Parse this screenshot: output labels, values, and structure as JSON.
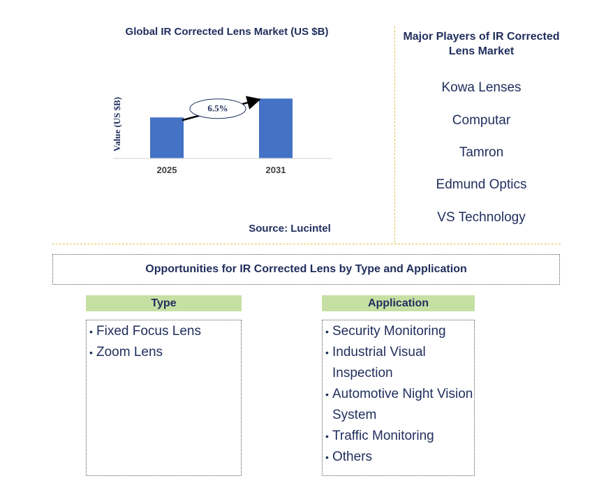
{
  "chart_data": {
    "type": "bar",
    "title": "Global IR Corrected Lens Market (US $B)",
    "ylabel": "Value (US $B)",
    "xlabel": "",
    "categories": [
      "2025",
      "2031"
    ],
    "values": [
      1.0,
      1.46
    ],
    "ylim": [
      0,
      1.6
    ],
    "grid": false,
    "annotation": "6.5%",
    "bar_color": "#4472c4"
  },
  "source": "Source: Lucintel",
  "players": {
    "title": "Major Players of IR Corrected Lens Market",
    "items": [
      "Kowa Lenses",
      "Computar",
      "Tamron",
      "Edmund Optics",
      "VS Technology"
    ]
  },
  "opportunities": {
    "title": "Opportunities for IR Corrected Lens by Type and Application",
    "type": {
      "heading": "Type",
      "items": [
        "Fixed Focus Lens",
        "Zoom Lens"
      ]
    },
    "application": {
      "heading": "Application",
      "items": [
        "Security Monitoring",
        "Industrial Visual Inspection",
        "Automotive Night Vision System",
        "Traffic Monitoring",
        "Others"
      ]
    }
  },
  "colors": {
    "text": "#1f2d5c",
    "bar": "#4472c4",
    "header_fill": "#c6e0a4",
    "divider": "#e3c24a"
  }
}
